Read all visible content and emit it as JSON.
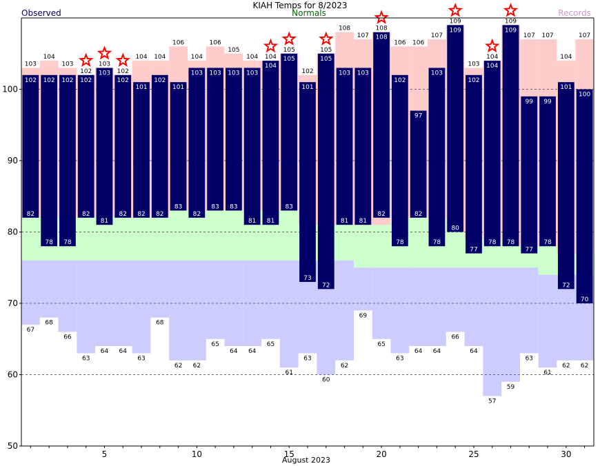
{
  "chart_data": {
    "type": "bar",
    "title": "KIAH Temps for 8/2023",
    "xlabel": "August 2023",
    "ylabel": "",
    "ylim": [
      50,
      110
    ],
    "yticks": [
      50,
      60,
      70,
      80,
      90,
      100
    ],
    "xticks": [
      5,
      10,
      15,
      20,
      25,
      30
    ],
    "grid": "horizontal dashed at 60, 70, 80, 90, 100",
    "legend": [
      {
        "name": "Observed",
        "color": "#000066",
        "placement": "top-left"
      },
      {
        "name": "Normals",
        "color": "#006600",
        "placement": "top-center"
      },
      {
        "name": "Records",
        "color": "#cc99cc",
        "placement": "top-right"
      }
    ],
    "colors": {
      "observed": "#000066",
      "observed_label": "#ffffff",
      "record_band": "#ffcccc",
      "normal_band": "#ccffcc",
      "below_band": "#ccccff",
      "record_star": "#ff0000",
      "grid": "#666666",
      "text": "#000000"
    },
    "days": [
      1,
      2,
      3,
      4,
      5,
      6,
      7,
      8,
      9,
      10,
      11,
      12,
      13,
      14,
      15,
      16,
      17,
      18,
      19,
      20,
      21,
      22,
      23,
      24,
      25,
      26,
      27,
      28,
      29,
      30,
      31
    ],
    "observed_high": [
      102,
      102,
      102,
      102,
      103,
      102,
      101,
      102,
      101,
      103,
      103,
      103,
      103,
      104,
      105,
      101,
      105,
      103,
      103,
      108,
      102,
      97,
      103,
      109,
      102,
      104,
      109,
      99,
      99,
      101,
      100
    ],
    "observed_low": [
      82,
      78,
      78,
      82,
      81,
      82,
      82,
      82,
      83,
      82,
      83,
      83,
      81,
      81,
      83,
      73,
      72,
      81,
      81,
      82,
      78,
      82,
      78,
      80,
      77,
      78,
      78,
      77,
      78,
      72,
      70
    ],
    "record_high": [
      103,
      104,
      103,
      102,
      103,
      102,
      104,
      104,
      106,
      104,
      106,
      105,
      104,
      104,
      105,
      102,
      105,
      108,
      107,
      108,
      106,
      106,
      107,
      109,
      103,
      104,
      109,
      107,
      107,
      104,
      107
    ],
    "record_low": [
      67,
      68,
      66,
      63,
      64,
      64,
      63,
      68,
      62,
      62,
      65,
      64,
      64,
      65,
      61,
      63,
      60,
      62,
      69,
      65,
      63,
      64,
      64,
      66,
      64,
      57,
      59,
      63,
      61,
      62,
      62
    ],
    "normal_high": [
      82,
      82,
      82,
      82,
      82,
      82,
      82,
      82,
      83,
      83,
      83,
      83,
      83,
      83,
      83,
      81,
      81,
      81,
      81,
      81,
      82,
      82,
      82,
      80,
      79,
      79,
      78,
      78,
      78,
      77,
      77
    ],
    "normal_low": [
      76,
      76,
      76,
      76,
      76,
      76,
      76,
      76,
      76,
      76,
      76,
      76,
      76,
      76,
      76,
      76,
      76,
      76,
      75,
      75,
      75,
      75,
      75,
      75,
      75,
      75,
      75,
      75,
      74,
      74,
      74
    ],
    "record_set_days": [
      4,
      5,
      6,
      14,
      15,
      17,
      20,
      24,
      26,
      27
    ]
  }
}
